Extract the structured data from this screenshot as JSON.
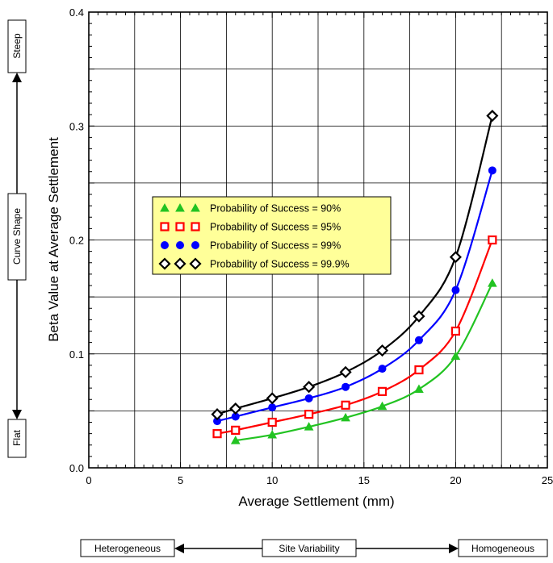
{
  "chart_data": {
    "type": "line",
    "title": "",
    "xlabel": "Average Settlement (mm)",
    "ylabel": "Beta Value at Average Settlement",
    "xlim": [
      0,
      25
    ],
    "ylim": [
      0.0,
      0.4
    ],
    "x_ticks": [
      "0",
      "5",
      "10",
      "15",
      "20",
      "25"
    ],
    "y_ticks": [
      "0.0",
      "0.1",
      "0.2",
      "0.3",
      "0.4"
    ],
    "x_tick_values": [
      0,
      5,
      10,
      15,
      20,
      25
    ],
    "y_tick_values": [
      0.0,
      0.1,
      0.2,
      0.3,
      0.4
    ],
    "x_minor_step": 2.5,
    "y_minor_step": 0.05,
    "grid": true,
    "legend_position": "center-left",
    "series": [
      {
        "name": "Probability of Success = 90%",
        "marker": "triangle",
        "color": "#22c322",
        "x": [
          8,
          10,
          12,
          14,
          16,
          18,
          20,
          22
        ],
        "y": [
          0.024,
          0.029,
          0.036,
          0.044,
          0.054,
          0.069,
          0.098,
          0.162
        ]
      },
      {
        "name": "Probability of Success = 95%",
        "marker": "square",
        "color": "#ff0000",
        "x": [
          7,
          8,
          10,
          12,
          14,
          16,
          18,
          20,
          22
        ],
        "y": [
          0.03,
          0.033,
          0.04,
          0.047,
          0.055,
          0.067,
          0.086,
          0.12,
          0.2
        ]
      },
      {
        "name": "Probability of Success = 99%",
        "marker": "circle",
        "color": "#0000ff",
        "x": [
          7,
          8,
          10,
          12,
          14,
          16,
          18,
          20,
          22
        ],
        "y": [
          0.041,
          0.045,
          0.053,
          0.061,
          0.071,
          0.087,
          0.112,
          0.156,
          0.261
        ]
      },
      {
        "name": "Probability of Success = 99.9%",
        "marker": "diamond",
        "color": "#000000",
        "x": [
          7,
          8,
          10,
          12,
          14,
          16,
          18,
          20,
          22
        ],
        "y": [
          0.047,
          0.052,
          0.061,
          0.071,
          0.084,
          0.103,
          0.133,
          0.185,
          0.309
        ]
      }
    ],
    "legend_bg": "#ffff99",
    "side_annotations": {
      "vertical": {
        "top": "Steep",
        "middle": "Curve Shape",
        "bottom": "Flat"
      },
      "horizontal": {
        "left": "Heterogeneous",
        "middle": "Site Variability",
        "right": "Homogeneous"
      }
    }
  }
}
